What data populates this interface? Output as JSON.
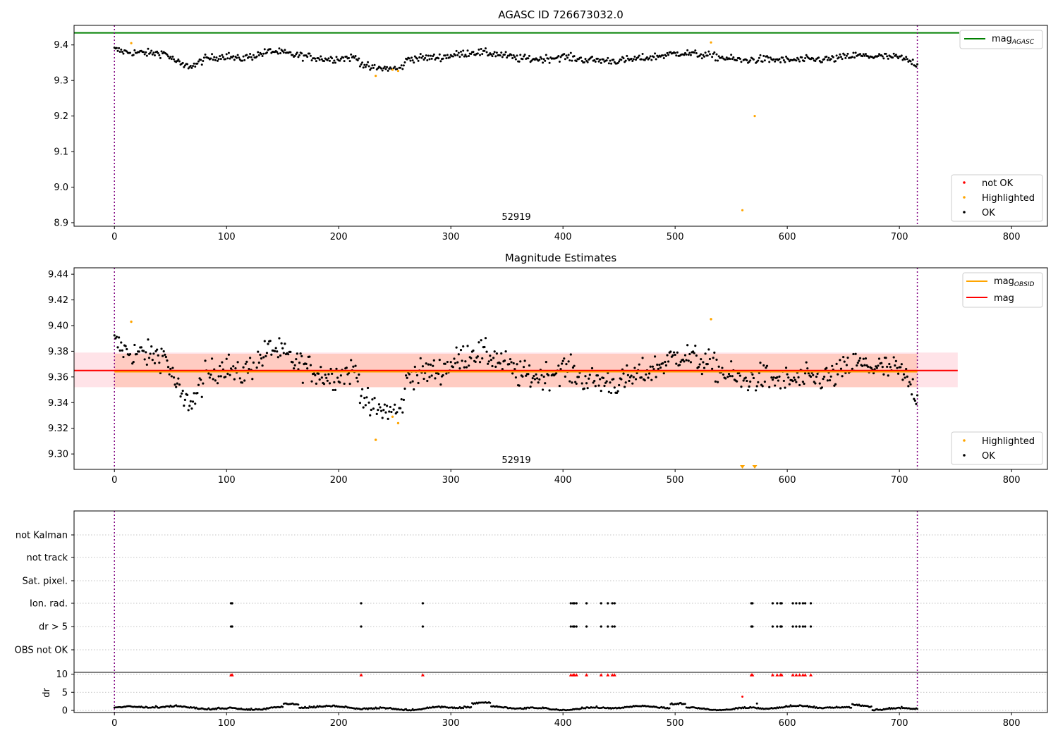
{
  "colors": {
    "ok": "#000000",
    "highlighted": "#ffa500",
    "not_ok": "#ff0000",
    "mag_agasc": "#008000",
    "mag_obsid": "#ffa500",
    "mag": "#ff0000",
    "vline": "#800080",
    "band_mag": "#ffc0cb",
    "band_obsid": "#ffa07a"
  },
  "chart_data": [
    {
      "type": "scatter",
      "title": "AGASC ID 726673032.0",
      "xlim": [
        -36,
        832
      ],
      "ylim": [
        8.89,
        9.455
      ],
      "xticks": [
        "0",
        "100",
        "200",
        "300",
        "400",
        "500",
        "600",
        "700",
        "800"
      ],
      "yticks": [
        "8.9",
        "9.0",
        "9.1",
        "9.2",
        "9.3",
        "9.4"
      ],
      "obsid_label": "52919",
      "obsid_label_x": 358,
      "vlines": [
        0,
        716
      ],
      "mag_agasc": 9.434,
      "legend_lines": [
        {
          "name": "mag",
          "sub": "AGASC"
        }
      ],
      "legend_points": [
        "not OK",
        "Highlighted",
        "OK"
      ],
      "highlighted": [
        [
          15,
          9.405
        ],
        [
          233,
          9.313
        ],
        [
          248,
          9.33
        ],
        [
          253,
          9.327
        ],
        [
          532,
          9.407
        ],
        [
          560,
          8.935
        ],
        [
          571,
          9.2
        ]
      ]
    },
    {
      "type": "scatter",
      "title": "Magnitude Estimates",
      "xlim": [
        -36,
        832
      ],
      "ylim": [
        9.288,
        9.445
      ],
      "xticks": [
        "0",
        "100",
        "200",
        "300",
        "400",
        "500",
        "600",
        "700",
        "800"
      ],
      "yticks": [
        "9.30",
        "9.32",
        "9.34",
        "9.36",
        "9.38",
        "9.40",
        "9.42",
        "9.44"
      ],
      "obsid_label": "52919",
      "obsid_label_x": 358,
      "vlines": [
        0,
        716
      ],
      "mag": 9.365,
      "mag_obsid": 9.364,
      "mag_band": [
        9.352,
        9.379
      ],
      "obsid_band": [
        9.352,
        9.378
      ],
      "band_xrange": [
        -36,
        752
      ],
      "legend_lines": [
        {
          "name": "mag",
          "sub": "OBSID"
        },
        {
          "name": "mag",
          "sub": ""
        }
      ],
      "legend_points": [
        "Highlighted",
        "OK"
      ],
      "highlighted": [
        [
          15,
          9.403
        ],
        [
          233,
          9.311
        ],
        [
          248,
          9.329
        ],
        [
          253,
          9.324
        ],
        [
          532,
          9.405
        ]
      ],
      "clipped_low": [
        560,
        571
      ]
    },
    {
      "type": "scatter",
      "title": "",
      "xlim": [
        -36,
        832
      ],
      "xticks": [
        "0",
        "100",
        "200",
        "300",
        "400",
        "500",
        "600",
        "700",
        "800"
      ],
      "vlines": [
        0,
        716
      ],
      "flag_rows": [
        "not Kalman",
        "not track",
        "Sat. pixel.",
        "Ion. rad.",
        "dr > 5",
        "OBS not OK"
      ],
      "flag_events": {
        "Ion. rad.": [
          104,
          105,
          220,
          275,
          407,
          409,
          410,
          412,
          421,
          434,
          440,
          444,
          446,
          568,
          569,
          587,
          591,
          594,
          595,
          605,
          608,
          611,
          614,
          616,
          621
        ],
        "dr > 5": [
          104,
          105,
          220,
          275,
          407,
          409,
          410,
          412,
          421,
          434,
          440,
          444,
          446,
          568,
          569,
          587,
          591,
          594,
          595,
          605,
          608,
          611,
          614,
          616,
          621
        ]
      },
      "dr_ylabel": "dr",
      "dr_ylim": [
        0,
        10.5
      ],
      "dr_yticks": [
        "0",
        "5",
        "10"
      ],
      "dr_clipped": [
        104,
        105,
        220,
        275,
        407,
        409,
        410,
        412,
        421,
        434,
        440,
        444,
        446,
        568,
        569,
        587,
        591,
        594,
        595,
        605,
        608,
        611,
        614,
        616,
        621
      ],
      "dr_outliers": [
        [
          560,
          3.8
        ],
        [
          573,
          1.9
        ]
      ]
    }
  ]
}
